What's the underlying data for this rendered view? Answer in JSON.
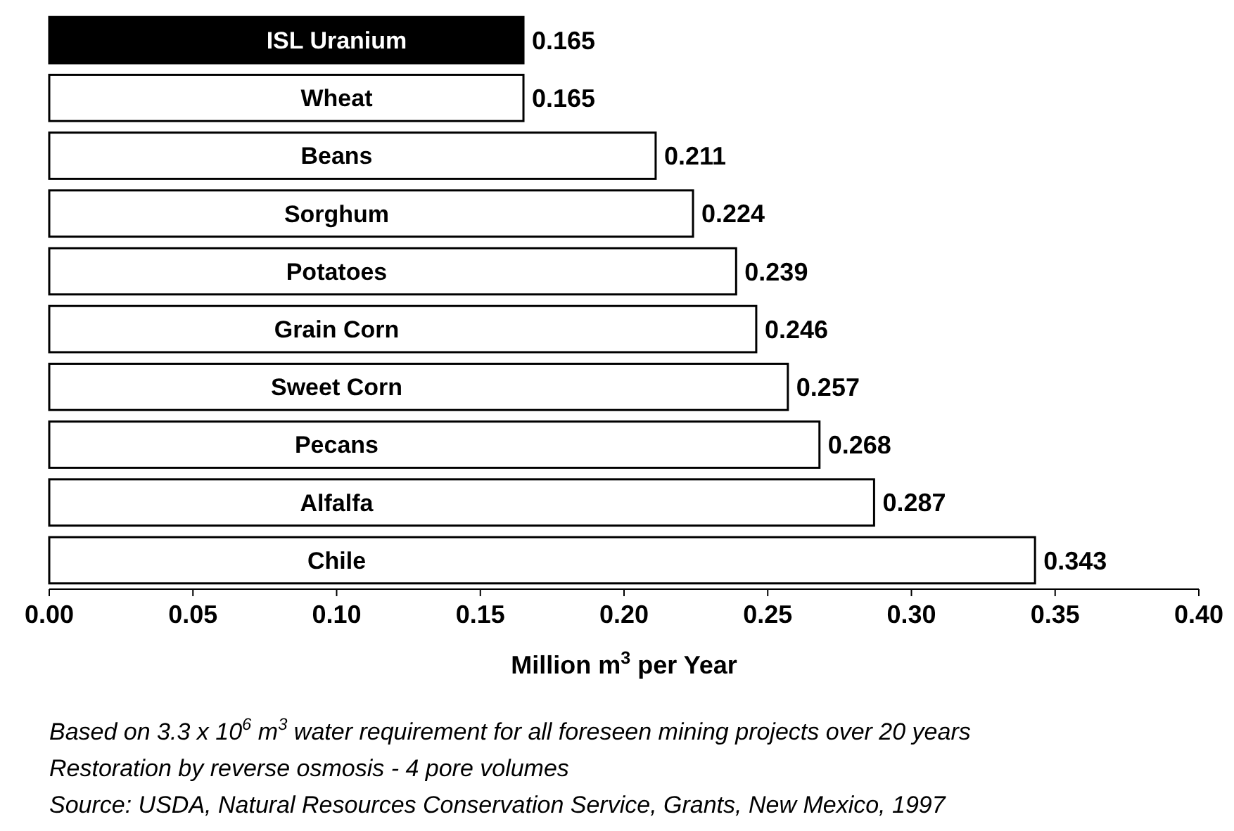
{
  "chart_data": {
    "type": "bar",
    "orientation": "horizontal",
    "categories": [
      "ISL Uranium",
      "Wheat",
      "Beans",
      "Sorghum",
      "Potatoes",
      "Grain Corn",
      "Sweet Corn",
      "Pecans",
      "Alfalfa",
      "Chile"
    ],
    "values": [
      0.165,
      0.165,
      0.211,
      0.224,
      0.239,
      0.246,
      0.257,
      0.268,
      0.287,
      0.343
    ],
    "colors": [
      "#000000",
      "#ffffff",
      "#ffffff",
      "#ffffff",
      "#ffffff",
      "#ffffff",
      "#ffffff",
      "#ffffff",
      "#ffffff",
      "#ffffff"
    ],
    "data_labels": true,
    "xlabel": "Million m$^{3}$ per Year",
    "xlim": [
      0,
      0.4
    ],
    "xticks": [
      {
        "value": 0,
        "label": "0.00"
      },
      {
        "value": 0.05,
        "label": "0.05"
      },
      {
        "value": 0.1,
        "label": "0.10"
      },
      {
        "value": 0.15,
        "label": "0.15"
      },
      {
        "value": 0.2,
        "label": "0.20"
      },
      {
        "value": 0.25,
        "label": "0.25"
      },
      {
        "value": 0.3,
        "label": "0.30"
      },
      {
        "value": 0.35,
        "label": "0.35"
      },
      {
        "value": 0.4,
        "label": "0.40"
      }
    ],
    "annotations": [
      "Based on 3.3 x 10$^{6}$ m$^{3}$ water requirement for all foreseen mining projects over 20 years",
      "Restoration by reverse osmosis - 4 pore volumes",
      "Source: USDA, Natural Resources Conservation Service, Grants, New Mexico, 1997"
    ]
  }
}
